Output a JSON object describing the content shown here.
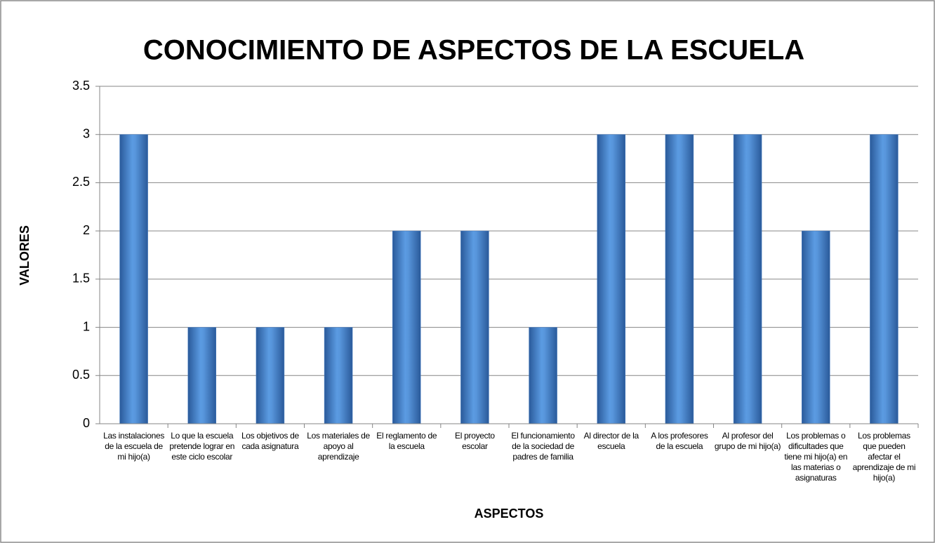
{
  "chart_data": {
    "type": "bar",
    "title": "CONOCIMIENTO DE ASPECTOS DE LA ESCUELA",
    "xlabel": "ASPECTOS",
    "ylabel": "VALORES",
    "categories": [
      "Las instalaciones de la escuela de mi hijo(a)",
      "Lo que la escuela pretende lograr en este ciclo escolar",
      "Los objetivos de cada asignatura",
      "Los materiales de apoyo al aprendizaje",
      "El reglamento de la escuela",
      "El proyecto escolar",
      "El funcionamiento de la sociedad de padres de familia",
      "Al director de la escuela",
      "A los profesores de la escuela",
      "Al profesor del grupo de mi hijo(a)",
      "Los problemas o dificultades que tiene mi hijo(a) en las materias o asignaturas",
      "Los problemas que pueden afectar el aprendizaje de mi hijo(a)"
    ],
    "values": [
      3,
      1,
      1,
      1,
      2,
      2,
      1,
      3,
      3,
      3,
      2,
      3
    ],
    "color": "#4a7fc4",
    "ylim": [
      0,
      3.5
    ],
    "yticks": [
      0,
      0.5,
      1,
      1.5,
      2,
      2.5,
      3,
      3.5
    ],
    "grid": true
  }
}
